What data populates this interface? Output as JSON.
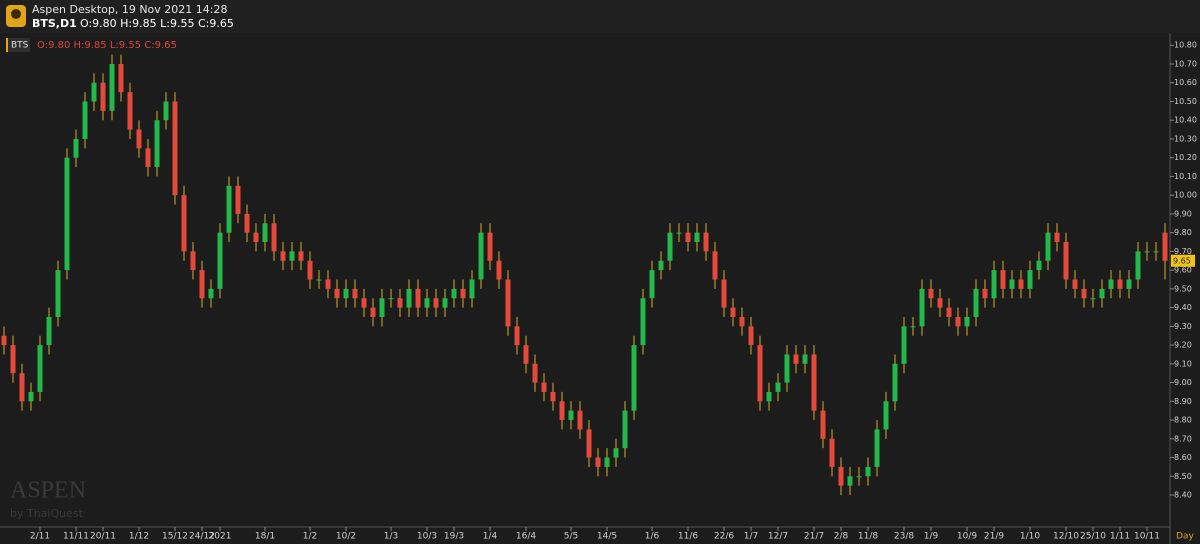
{
  "header": {
    "app": "Aspen Desktop, 19 Nov 2021 14:28",
    "symbol": "BTS,D1",
    "ohlc": "O:9.80 H:9.85 L:9.55 C:9.65"
  },
  "watermark": {
    "brand": "ASPEN",
    "by": "by ThaiQuest"
  },
  "chart_data": {
    "type": "candlestick",
    "symbol_badge": "BTS",
    "legend_ohlc": "O:9.80 H:9.85 L:9.55 C:9.65",
    "x_axis_unit": "Day",
    "last_price_label": "9.65",
    "up_color": "#22b84a",
    "down_color": "#e5493a",
    "wick_color": "#d9ad2b",
    "categories": [
      null,
      null,
      null,
      null,
      "2/11",
      null,
      null,
      null,
      "11/11",
      null,
      null,
      "20/11",
      null,
      null,
      null,
      "1/12",
      null,
      null,
      null,
      "15/12",
      null,
      null,
      "24/12",
      null,
      "2021",
      null,
      null,
      null,
      null,
      "18/1",
      null,
      null,
      null,
      null,
      "1/2",
      null,
      null,
      null,
      "10/2",
      null,
      null,
      null,
      null,
      "1/3",
      null,
      null,
      null,
      "10/3",
      null,
      null,
      "19/3",
      null,
      null,
      null,
      "1/4",
      null,
      null,
      null,
      "16/4",
      null,
      null,
      null,
      null,
      "5/5",
      null,
      null,
      null,
      "14/5",
      null,
      null,
      null,
      null,
      "1/6",
      null,
      null,
      null,
      "11/6",
      null,
      null,
      null,
      "22/6",
      null,
      null,
      "1/7",
      null,
      null,
      "12/7",
      null,
      null,
      null,
      "21/7",
      null,
      null,
      "2/8",
      null,
      null,
      "11/8",
      null,
      null,
      null,
      "23/8",
      null,
      null,
      "1/9",
      null,
      null,
      null,
      "10/9",
      null,
      null,
      "21/9",
      null,
      null,
      null,
      "1/10",
      null,
      null,
      null,
      "12/10",
      null,
      null,
      "25/10",
      null,
      null,
      "1/11",
      null,
      null,
      "10/11",
      null,
      null
    ],
    "open": [
      9.25,
      9.2,
      9.05,
      8.9,
      8.95,
      9.2,
      9.35,
      9.6,
      10.2,
      10.3,
      10.5,
      10.6,
      10.45,
      10.7,
      10.55,
      10.35,
      10.25,
      10.15,
      10.4,
      10.5,
      10.0,
      9.7,
      9.6,
      9.45,
      9.5,
      9.8,
      10.05,
      9.9,
      9.8,
      9.75,
      9.85,
      9.7,
      9.65,
      9.7,
      9.65,
      9.55,
      9.55,
      9.5,
      9.45,
      9.5,
      9.45,
      9.4,
      9.35,
      9.45,
      9.45,
      9.4,
      9.5,
      9.4,
      9.45,
      9.4,
      9.45,
      9.5,
      9.45,
      9.55,
      9.8,
      9.65,
      9.55,
      9.3,
      9.2,
      9.1,
      9.0,
      8.95,
      8.9,
      8.8,
      8.85,
      8.75,
      8.6,
      8.55,
      8.6,
      8.65,
      8.85,
      9.2,
      9.45,
      9.6,
      9.65,
      9.8,
      9.8,
      9.75,
      9.8,
      9.7,
      9.55,
      9.4,
      9.35,
      9.3,
      9.2,
      8.9,
      8.95,
      9.0,
      9.15,
      9.1,
      9.15,
      8.85,
      8.7,
      8.55,
      8.45,
      8.5,
      8.5,
      8.55,
      8.75,
      8.9,
      9.1,
      9.3,
      9.3,
      9.5,
      9.45,
      9.4,
      9.35,
      9.3,
      9.35,
      9.5,
      9.45,
      9.6,
      9.5,
      9.55,
      9.5,
      9.6,
      9.65,
      9.8,
      9.75,
      9.55,
      9.5,
      9.45,
      9.45,
      9.5,
      9.55,
      9.5,
      9.55,
      9.7,
      9.7,
      9.8
    ],
    "high": [
      9.3,
      9.25,
      9.1,
      9.0,
      9.25,
      9.4,
      9.65,
      10.25,
      10.35,
      10.55,
      10.65,
      10.65,
      10.75,
      10.75,
      10.6,
      10.4,
      10.3,
      10.45,
      10.55,
      10.55,
      10.05,
      9.75,
      9.65,
      9.55,
      9.85,
      10.1,
      10.1,
      9.95,
      9.85,
      9.9,
      9.9,
      9.75,
      9.75,
      9.75,
      9.7,
      9.6,
      9.6,
      9.55,
      9.55,
      9.55,
      9.5,
      9.45,
      9.5,
      9.5,
      9.5,
      9.55,
      9.55,
      9.5,
      9.5,
      9.5,
      9.55,
      9.55,
      9.6,
      9.85,
      9.85,
      9.7,
      9.6,
      9.35,
      9.25,
      9.15,
      9.05,
      9.0,
      8.95,
      8.9,
      8.9,
      8.8,
      8.65,
      8.65,
      8.7,
      8.9,
      9.25,
      9.5,
      9.65,
      9.7,
      9.85,
      9.85,
      9.85,
      9.85,
      9.85,
      9.75,
      9.6,
      9.45,
      9.4,
      9.35,
      9.25,
      9.0,
      9.05,
      9.2,
      9.2,
      9.2,
      9.2,
      8.9,
      8.75,
      8.6,
      8.55,
      8.55,
      8.6,
      8.8,
      8.95,
      9.15,
      9.35,
      9.35,
      9.55,
      9.55,
      9.5,
      9.45,
      9.4,
      9.4,
      9.55,
      9.55,
      9.65,
      9.65,
      9.6,
      9.6,
      9.65,
      9.7,
      9.85,
      9.85,
      9.8,
      9.6,
      9.55,
      9.5,
      9.55,
      9.6,
      9.6,
      9.6,
      9.75,
      9.75,
      9.75,
      9.85
    ],
    "low": [
      9.15,
      9.0,
      8.85,
      8.85,
      8.9,
      9.15,
      9.3,
      9.55,
      10.15,
      10.25,
      10.45,
      10.4,
      10.4,
      10.5,
      10.3,
      10.2,
      10.1,
      10.1,
      10.35,
      9.95,
      9.65,
      9.55,
      9.4,
      9.4,
      9.45,
      9.75,
      9.85,
      9.75,
      9.7,
      9.7,
      9.65,
      9.6,
      9.6,
      9.6,
      9.5,
      9.5,
      9.45,
      9.4,
      9.4,
      9.4,
      9.35,
      9.3,
      9.3,
      9.4,
      9.35,
      9.35,
      9.35,
      9.35,
      9.35,
      9.35,
      9.4,
      9.4,
      9.4,
      9.5,
      9.6,
      9.5,
      9.25,
      9.15,
      9.05,
      8.95,
      8.9,
      8.85,
      8.75,
      8.75,
      8.7,
      8.55,
      8.5,
      8.5,
      8.55,
      8.6,
      8.8,
      9.15,
      9.4,
      9.55,
      9.6,
      9.75,
      9.7,
      9.7,
      9.65,
      9.5,
      9.35,
      9.3,
      9.25,
      9.15,
      8.85,
      8.85,
      8.9,
      8.95,
      9.05,
      9.05,
      8.8,
      8.65,
      8.5,
      8.4,
      8.4,
      8.45,
      8.45,
      8.5,
      8.7,
      8.85,
      9.05,
      9.25,
      9.25,
      9.4,
      9.35,
      9.3,
      9.25,
      9.25,
      9.3,
      9.4,
      9.4,
      9.45,
      9.45,
      9.45,
      9.45,
      9.55,
      9.6,
      9.7,
      9.5,
      9.45,
      9.4,
      9.4,
      9.4,
      9.45,
      9.45,
      9.45,
      9.5,
      9.65,
      9.65,
      9.55
    ],
    "close": [
      9.2,
      9.05,
      8.9,
      8.95,
      9.2,
      9.35,
      9.6,
      10.2,
      10.3,
      10.5,
      10.6,
      10.45,
      10.7,
      10.55,
      10.35,
      10.25,
      10.15,
      10.4,
      10.5,
      10.0,
      9.7,
      9.6,
      9.45,
      9.5,
      9.8,
      10.05,
      9.9,
      9.8,
      9.75,
      9.85,
      9.7,
      9.65,
      9.7,
      9.65,
      9.55,
      9.55,
      9.5,
      9.45,
      9.5,
      9.45,
      9.4,
      9.35,
      9.45,
      9.45,
      9.4,
      9.5,
      9.4,
      9.45,
      9.4,
      9.45,
      9.5,
      9.45,
      9.55,
      9.8,
      9.65,
      9.55,
      9.3,
      9.2,
      9.1,
      9.0,
      8.95,
      8.9,
      8.8,
      8.85,
      8.75,
      8.6,
      8.55,
      8.6,
      8.65,
      8.85,
      9.2,
      9.45,
      9.6,
      9.65,
      9.8,
      9.8,
      9.75,
      9.8,
      9.7,
      9.55,
      9.4,
      9.35,
      9.3,
      9.2,
      8.9,
      8.95,
      9.0,
      9.15,
      9.1,
      9.15,
      8.85,
      8.7,
      8.55,
      8.45,
      8.5,
      8.5,
      8.55,
      8.75,
      8.9,
      9.1,
      9.3,
      9.3,
      9.5,
      9.45,
      9.4,
      9.35,
      9.3,
      9.35,
      9.5,
      9.45,
      9.6,
      9.5,
      9.55,
      9.5,
      9.6,
      9.65,
      9.8,
      9.75,
      9.55,
      9.5,
      9.45,
      9.45,
      9.5,
      9.55,
      9.5,
      9.55,
      9.7,
      9.7,
      9.7,
      9.65
    ],
    "ylim": [
      8.32,
      10.86
    ],
    "yticks": [
      {
        "value": 8.4,
        "label": "8.40"
      },
      {
        "value": 8.5,
        "label": "8.50"
      },
      {
        "value": 8.6,
        "label": "8.60"
      },
      {
        "value": 8.7,
        "label": "8.70"
      },
      {
        "value": 8.8,
        "label": "8.80"
      },
      {
        "value": 8.9,
        "label": "8.90"
      },
      {
        "value": 9.0,
        "label": "9.00"
      },
      {
        "value": 9.1,
        "label": "9.10"
      },
      {
        "value": 9.2,
        "label": "9.20"
      },
      {
        "value": 9.3,
        "label": "9.30"
      },
      {
        "value": 9.4,
        "label": "9.40"
      },
      {
        "value": 9.5,
        "label": "9.50"
      },
      {
        "value": 9.6,
        "label": "9.60"
      },
      {
        "value": 9.7,
        "label": "9.70"
      },
      {
        "value": 9.8,
        "label": "9.80"
      },
      {
        "value": 9.9,
        "label": "9.90"
      },
      {
        "value": 10.0,
        "label": "10.00"
      },
      {
        "value": 10.1,
        "label": "10.10"
      },
      {
        "value": 10.2,
        "label": "10.20"
      },
      {
        "value": 10.3,
        "label": "10.30"
      },
      {
        "value": 10.4,
        "label": "10.40"
      },
      {
        "value": 10.5,
        "label": "10.50"
      },
      {
        "value": 10.6,
        "label": "10.60"
      },
      {
        "value": 10.7,
        "label": "10.70"
      },
      {
        "value": 10.8,
        "label": "10.80"
      }
    ]
  }
}
